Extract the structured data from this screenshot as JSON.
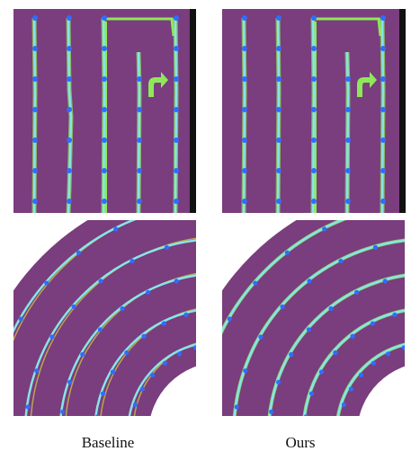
{
  "figure": {
    "columns": [
      {
        "caption": "Baseline"
      },
      {
        "caption": "Ours"
      }
    ]
  }
}
